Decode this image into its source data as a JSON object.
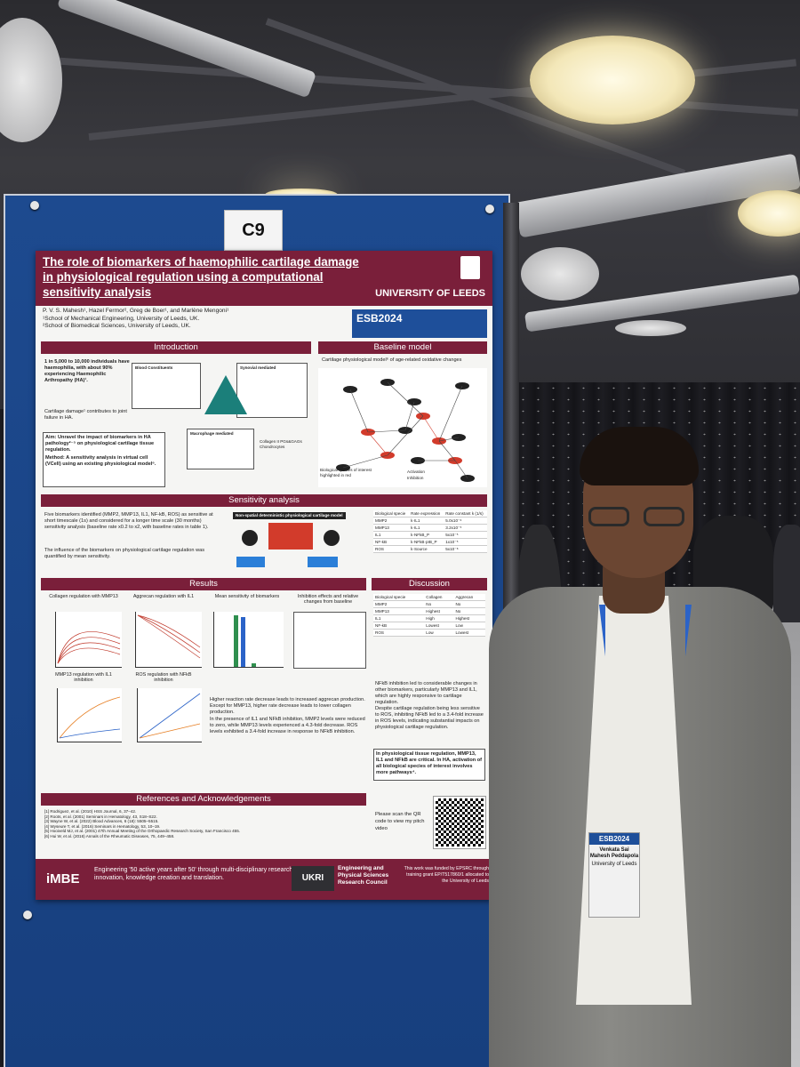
{
  "board": {
    "tag": "C9"
  },
  "poster": {
    "title": "The role of biomarkers of haemophilic cartilage damage in physiological regulation using a computational sensitivity analysis",
    "university": "UNIVERSITY OF LEEDS",
    "authors": "P. V. S. Mahesh¹, Hazel Fermor², Greg de Boer¹, and Marlène Mengoni¹",
    "affiliation_1": "¹School of Mechanical Engineering, University of Leeds, UK.",
    "affiliation_2": "²School of Biomedical Sciences, University of Leeds, UK.",
    "esb_logo": "ESB2024",
    "sections": {
      "introduction": "Introduction",
      "baseline": "Baseline model",
      "sensitivity": "Sensitivity analysis",
      "results": "Results",
      "discussion": "Discussion",
      "references": "References and Acknowledgements"
    },
    "intro": {
      "stat": "1 in 5,000 to 10,000 individuals have haemophilia, with about 90% experiencing Haemophilic Arthropathy (HA)¹.",
      "cartilage": "Cartilage damage¹ contributes to joint failure in HA.",
      "aim": "Aim: Unravel the impact of biomarkers in HA pathology²⁻⁵ on physiological cartilage tissue regulation.",
      "method": "Method: A sensitivity analysis in virtual cell (VCell) using an existing physiological model⁶.",
      "blood": "Blood Constituents",
      "synovial": "Synovial mediated",
      "macrophage": "Macrophage mediated",
      "tissue": "Collagen II  PGs&GAGs  Chondrocytes"
    },
    "baseline": {
      "caption": "Cartilage physiological model⁶ of age-related oxidative changes",
      "legend_1": "Biological species of interest highlighted in red",
      "legend_2": "Activation",
      "legend_3": "Inhibition"
    },
    "sensitivity": {
      "text_1": "Five biomarkers identified (MMP2, MMP13, IL1, NF-kB, ROS) as sensitive at short timescale (1s) and considered for a longer time scale (30 months) sensitivity analysis (baseline rate x0.2 to x2, with baseline rates in table 1).",
      "text_2": "The influence of the biomarkers on physiological cartilage regulation was quantified by mean sensitivity.",
      "diagram_title": "Non-spatial deterministic physiological cartilage model",
      "table_headers": [
        "Biological specie",
        "Rate expression",
        "Rate constant k (1/s)"
      ],
      "table_rows": [
        [
          "MMP2",
          "k·IL1",
          "5.0x10⁻⁶"
        ],
        [
          "MMP13",
          "k·IL1",
          "3.2x10⁻⁵"
        ],
        [
          "IL1",
          "k·NFkB_P",
          "5x10⁻⁵"
        ],
        [
          "NF-kB",
          "k·NFkB·pIB_P",
          "1x10⁻⁵"
        ],
        [
          "ROS",
          "k·Source",
          "5x10⁻⁸"
        ]
      ]
    },
    "results": {
      "plot_1": "Collagen regulation with MMP13",
      "plot_2": "Aggrecan regulation with IL1",
      "plot_3": "Mean sensitivity of biomarkers",
      "plot_4": "Inhibition effects and relative changes from baseline",
      "plot_5": "MMP13 regulation with IL1 inhibition",
      "plot_6": "ROS regulation with NFkB inhibition",
      "bullet_1": "Higher reaction rate decrease leads to increased aggrecan production. Except for MMP13, higher rate decrease leads to lower collagen production.",
      "bullet_2": "In the presence of IL1 and NFkB inhibition, MMP2 levels were reduced to zero, while MMP13 levels experienced a 4.3-fold decrease. ROS levels exhibited a 3.4-fold increase in response to NFkB inhibition."
    },
    "discussion": {
      "headers": [
        "Biological specie",
        "Collagen",
        "Aggrecan"
      ],
      "rows": [
        [
          "MMP2",
          "No",
          "No"
        ],
        [
          "MMP13",
          "Highest",
          "No"
        ],
        [
          "IL1",
          "High",
          "Highest"
        ],
        [
          "NF-kB",
          "Lowest",
          "Low"
        ],
        [
          "ROS",
          "Low",
          "Lowest"
        ]
      ],
      "point_1": "NFkB inhibition led to considerable changes in other biomarkers, particularly MMP13 and IL1, which are highly responsive to cartilage regulation.",
      "point_2": "Despite cartilage regulation being less sensitive to ROS, inhibiting NFkB led to a 3.4-fold increase in ROS levels, indicating substantial impacts on physiological cartilage regulation.",
      "conclusion": "In physiological tissue regulation, MMP13, IL1 and NFkB are critical. In HA, activation of all biological species of interest involves more pathways⁴."
    },
    "references": [
      "[1] Rodriguez, et al. (2010) HSS Journal, 6, 37–42.",
      "[2] Roots, et al. (2001) Seminars in Hematology, 43, S18–S22.",
      "[3] Wayne W, et al. (2022) Blood Advances, 6 (18): 5505–5515.",
      "[4] Wyseure T, et al. (2016) Seminars in Hematology, 53, 10–19.",
      "[5] Hooiveld MJ, et al. (2001) 47th Annual Meeting of the Orthopaedic Research Society, San Francisco 455.",
      "[6] Hui W, et al. (2016) Annals of the Rheumatic Diseases, 75, 449–458."
    ],
    "qr_text": "Please scan the QR code to view my pitch video",
    "footer": {
      "imbe": "iMBE",
      "engineering": "Engineering '50 active years after 50' through multi-disciplinary research, innovation, knowledge creation and translation.",
      "ukri": "UKRI",
      "epsrc": "Engineering and Physical Sciences Research Council",
      "funding": "This work was funded by EPSRC through training grant EP/T517860/1 allocated to the University of Leeds"
    }
  },
  "badge": {
    "event": "ESB2024",
    "name": "Venkata Sai Mahesh Peddapola",
    "org": "University of Leeds"
  }
}
